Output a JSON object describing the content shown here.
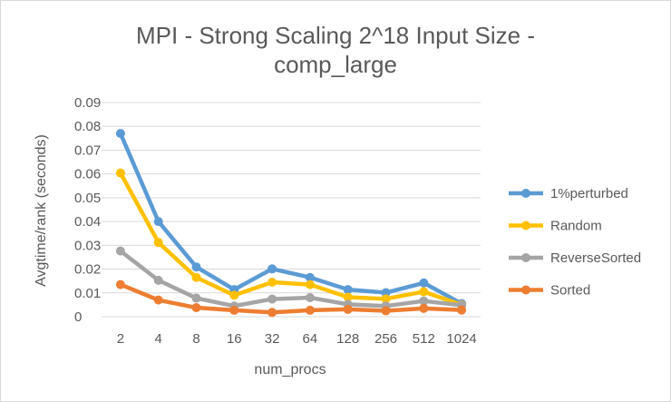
{
  "chart_data": {
    "type": "line",
    "title_lines": [
      "MPI - Strong Scaling 2^18 Input Size -",
      "comp_large"
    ],
    "xlabel": "num_procs",
    "ylabel": "Avgtime/rank (seconds)",
    "categories": [
      "2",
      "4",
      "8",
      "16",
      "32",
      "64",
      "128",
      "256",
      "512",
      "1024"
    ],
    "ylim": [
      0,
      0.09
    ],
    "yticks": [
      "0",
      "0.01",
      "0.02",
      "0.03",
      "0.04",
      "0.05",
      "0.06",
      "0.07",
      "0.08",
      "0.09"
    ],
    "grid": true,
    "legend_position": "right",
    "series": [
      {
        "name": "1%perturbed",
        "color": "#5b9bd5",
        "values": [
          0.077,
          0.04,
          0.0209,
          0.0114,
          0.0201,
          0.0165,
          0.0114,
          0.0101,
          0.0142,
          0.0055
        ]
      },
      {
        "name": "Random",
        "color": "#ffc000",
        "values": [
          0.0604,
          0.0312,
          0.0165,
          0.009,
          0.0145,
          0.0135,
          0.0082,
          0.0075,
          0.0105,
          0.005
        ]
      },
      {
        "name": "ReverseSorted",
        "color": "#a5a5a5",
        "values": [
          0.0276,
          0.0153,
          0.0078,
          0.0045,
          0.0074,
          0.008,
          0.0052,
          0.0045,
          0.0066,
          0.0048
        ]
      },
      {
        "name": "Sorted",
        "color": "#ed7d31",
        "values": [
          0.0135,
          0.007,
          0.0038,
          0.0027,
          0.0018,
          0.0027,
          0.0031,
          0.0025,
          0.0035,
          0.0028
        ]
      }
    ]
  }
}
